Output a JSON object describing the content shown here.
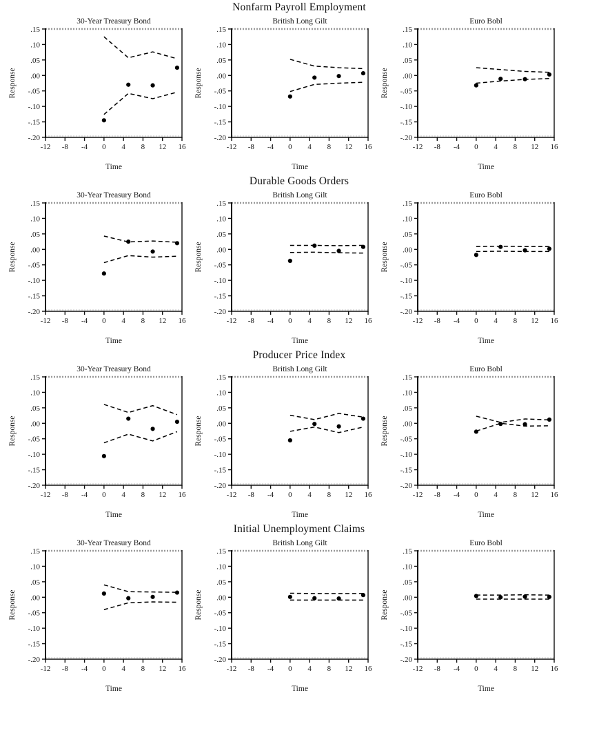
{
  "figure": {
    "description": "Grid of impulse response panels: bond futures responses to macroeconomic announcement surprises, with dashed confidence bands and point estimates",
    "axes": {
      "xlabel": "Time",
      "ylabel": "Response",
      "xlim": [
        -12,
        16
      ],
      "ylim": [
        -0.2,
        0.15
      ],
      "xticks": {
        "values": [
          -12,
          -8,
          -4,
          0,
          4,
          8,
          12,
          16
        ],
        "labels": [
          "-12",
          "-8",
          "-4",
          "0",
          "4",
          "8",
          "12",
          "16"
        ]
      },
      "yticks": {
        "values": [
          0.15,
          0.1,
          0.05,
          0.0,
          -0.05,
          -0.1,
          -0.15,
          -0.2
        ],
        "labels": [
          ".15",
          ".10",
          ".05",
          ".00",
          "-.05",
          "-.10",
          "-.15",
          "-.20"
        ]
      },
      "grid": false,
      "frame": {
        "top_border_style": "dotted-gray",
        "other_borders": "solid-black"
      }
    },
    "marker_color": "#000000",
    "band_color": "#000000",
    "band_style": "dashed"
  },
  "chart_data": {
    "type": "scatter",
    "x": [
      0,
      5,
      10,
      15
    ],
    "rows": [
      {
        "title": "Nonfarm Payroll Employment",
        "panels": [
          {
            "title": "30-Year Treasury Bond",
            "dots": [
              -0.145,
              -0.03,
              -0.032,
              0.025
            ],
            "upper": [
              0.125,
              0.057,
              0.076,
              0.054
            ],
            "lower": [
              -0.126,
              -0.058,
              -0.075,
              -0.054
            ]
          },
          {
            "title": "British Long Gilt",
            "dots": [
              -0.068,
              -0.007,
              -0.002,
              0.007
            ],
            "upper": [
              0.052,
              0.03,
              0.025,
              0.022
            ],
            "lower": [
              -0.052,
              -0.029,
              -0.025,
              -0.022
            ]
          },
          {
            "title": "Euro Bobl",
            "dots": [
              -0.032,
              -0.011,
              -0.012,
              0.003
            ],
            "upper": [
              0.025,
              0.019,
              0.013,
              0.01
            ],
            "lower": [
              -0.025,
              -0.018,
              -0.013,
              -0.01
            ]
          }
        ]
      },
      {
        "title": "Durable Goods Orders",
        "panels": [
          {
            "title": "30-Year Treasury Bond",
            "dots": [
              -0.078,
              0.025,
              -0.007,
              0.02
            ],
            "upper": [
              0.043,
              0.024,
              0.027,
              0.023
            ],
            "lower": [
              -0.043,
              -0.02,
              -0.025,
              -0.022
            ]
          },
          {
            "title": "British Long Gilt",
            "dots": [
              -0.037,
              0.012,
              -0.005,
              0.008
            ],
            "upper": [
              0.013,
              0.013,
              0.012,
              0.013
            ],
            "lower": [
              -0.01,
              -0.009,
              -0.011,
              -0.012
            ]
          },
          {
            "title": "Euro Bobl",
            "dots": [
              -0.018,
              0.008,
              -0.003,
              0.002
            ],
            "upper": [
              0.009,
              0.01,
              0.009,
              0.009
            ],
            "lower": [
              -0.007,
              -0.006,
              -0.007,
              -0.007
            ]
          }
        ]
      },
      {
        "title": "Producer Price Index",
        "panels": [
          {
            "title": "30-Year Treasury Bond",
            "dots": [
              -0.106,
              0.015,
              -0.018,
              0.005
            ],
            "upper": [
              0.061,
              0.035,
              0.057,
              0.028
            ],
            "lower": [
              -0.063,
              -0.035,
              -0.057,
              -0.027
            ]
          },
          {
            "title": "British Long Gilt",
            "dots": [
              -0.055,
              -0.002,
              -0.01,
              0.015
            ],
            "upper": [
              0.026,
              0.012,
              0.032,
              0.02
            ],
            "lower": [
              -0.026,
              -0.012,
              -0.03,
              -0.012
            ]
          },
          {
            "title": "Euro Bobl",
            "dots": [
              -0.027,
              -0.002,
              -0.003,
              0.012
            ],
            "upper": [
              0.023,
              0.003,
              0.014,
              0.011
            ],
            "lower": [
              -0.025,
              0.0,
              -0.009,
              -0.008
            ]
          }
        ]
      },
      {
        "title": "Initial Unemployment Claims",
        "panels": [
          {
            "title": "30-Year Treasury Bond",
            "dots": [
              0.012,
              -0.003,
              0.001,
              0.015
            ],
            "upper": [
              0.04,
              0.018,
              0.017,
              0.016
            ],
            "lower": [
              -0.04,
              -0.018,
              -0.015,
              -0.016
            ]
          },
          {
            "title": "British Long Gilt",
            "dots": [
              0.001,
              -0.003,
              -0.004,
              0.007
            ],
            "upper": [
              0.013,
              0.012,
              0.012,
              0.012
            ],
            "lower": [
              -0.009,
              -0.009,
              -0.009,
              -0.009
            ]
          },
          {
            "title": "Euro Bobl",
            "dots": [
              0.004,
              0.0,
              0.002,
              0.001
            ],
            "upper": [
              0.007,
              0.007,
              0.008,
              0.007
            ],
            "lower": [
              -0.006,
              -0.006,
              -0.006,
              -0.006
            ]
          }
        ]
      }
    ]
  }
}
